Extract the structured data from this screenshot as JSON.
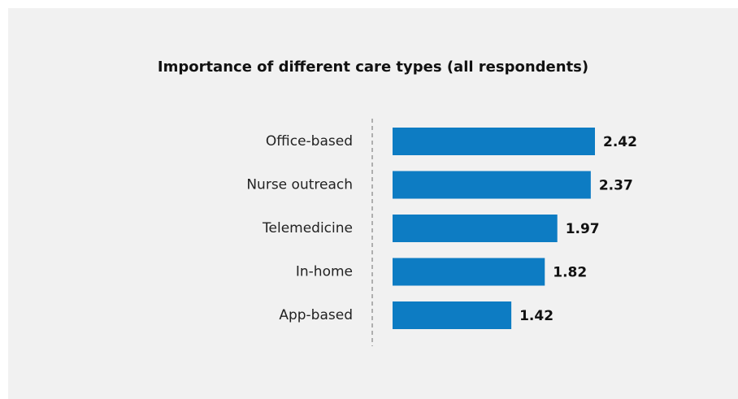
{
  "chart_data": {
    "type": "bar",
    "orientation": "horizontal",
    "title": "Importance of different care types (all respondents)",
    "categories": [
      "Office-based",
      "Nurse outreach",
      "Telemedicine",
      "In-home",
      "App-based"
    ],
    "values": [
      2.42,
      2.37,
      1.97,
      1.82,
      1.42
    ],
    "value_labels": [
      "2.42",
      "2.37",
      "1.97",
      "1.82",
      "1.42"
    ],
    "xlim": [
      0,
      2.42
    ],
    "grid": false,
    "bar_color": "#0d7cc3",
    "axis_color": "#999999"
  }
}
